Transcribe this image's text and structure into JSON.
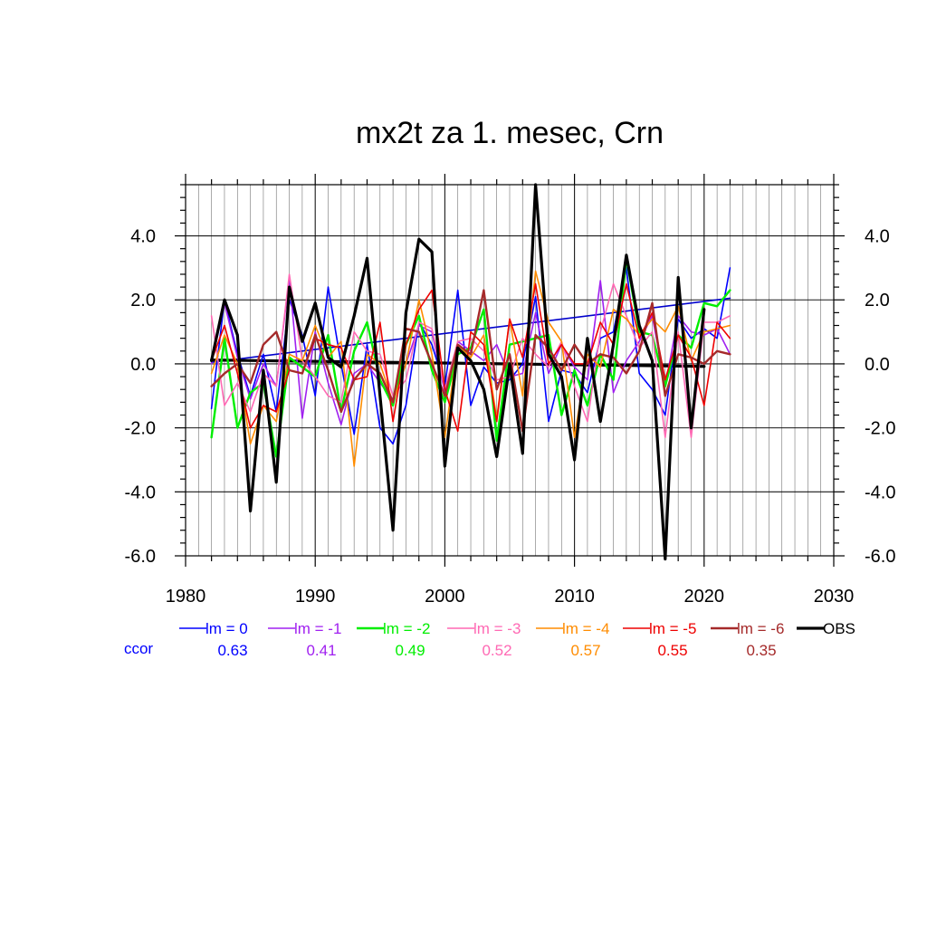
{
  "chart_data": {
    "type": "line",
    "title": "mx2t za 1. mesec, Crn",
    "xlabel": "",
    "ylabel": "",
    "xlim": [
      1980,
      2030
    ],
    "ylim": [
      -6.0,
      5.6
    ],
    "x_ticks": [
      1980,
      1990,
      2000,
      2010,
      2020,
      2030
    ],
    "y_ticks": [
      -6.0,
      -4.0,
      -2.0,
      0.0,
      2.0,
      4.0
    ],
    "y_tick_labels": [
      "-6.0",
      "-4.0",
      "-2.0",
      "0.0",
      "2.0",
      "4.0"
    ],
    "grid": true,
    "legend_placement": "bottom",
    "x": [
      1982,
      1983,
      1984,
      1985,
      1986,
      1987,
      1988,
      1989,
      1990,
      1991,
      1992,
      1993,
      1994,
      1995,
      1996,
      1997,
      1998,
      1999,
      2000,
      2001,
      2002,
      2003,
      2004,
      2005,
      2006,
      2007,
      2008,
      2009,
      2010,
      2011,
      2012,
      2013,
      2014,
      2015,
      2016,
      2017,
      2018,
      2019,
      2020,
      2021,
      2022
    ],
    "series": [
      {
        "name": "lm = 0",
        "color": "#0000ff",
        "ccor": "0.63",
        "width": 1.6,
        "values": [
          -1.4,
          2.0,
          0.3,
          -1.0,
          0.3,
          -1.5,
          2.0,
          0.9,
          -1.0,
          2.4,
          0.0,
          -2.2,
          0.6,
          -2.0,
          -2.5,
          -1.3,
          1.3,
          0.6,
          -0.7,
          2.3,
          -1.3,
          -0.1,
          -0.6,
          -0.5,
          0.0,
          2.1,
          -1.8,
          -0.2,
          -0.3,
          -0.9,
          0.8,
          1.0,
          3.0,
          -0.3,
          -0.8,
          -1.6,
          1.4,
          0.8,
          1.1,
          0.8,
          3.0
        ]
      },
      {
        "name": "lm = -1",
        "color": "#a020f0",
        "ccor": "0.41",
        "width": 1.6,
        "values": [
          0.0,
          1.9,
          0.2,
          -1.1,
          0.0,
          -0.7,
          2.7,
          -1.7,
          1.0,
          -0.6,
          -1.9,
          -0.3,
          0.0,
          -0.6,
          -1.1,
          0.0,
          1.2,
          1.0,
          -0.9,
          0.7,
          0.4,
          0.1,
          0.6,
          -0.4,
          -0.3,
          1.6,
          -0.3,
          0.6,
          -0.1,
          -0.5,
          2.6,
          -0.9,
          0.1,
          0.7,
          1.5,
          -0.7,
          1.5,
          1.0,
          0.9,
          1.1,
          0.3
        ]
      },
      {
        "name": "lm = -2",
        "color": "#00ee00",
        "ccor": "0.49",
        "width": 2.4,
        "values": [
          -2.3,
          0.8,
          -2.0,
          -0.9,
          -0.6,
          -2.9,
          0.2,
          -0.1,
          -0.4,
          0.9,
          -1.5,
          0.4,
          1.3,
          -0.5,
          -1.3,
          0.6,
          1.5,
          -0.2,
          -1.2,
          0.3,
          0.5,
          1.7,
          -2.4,
          0.6,
          0.7,
          0.8,
          0.9,
          -1.6,
          -0.2,
          -1.3,
          0.3,
          -0.5,
          3.3,
          1.0,
          0.9,
          -0.7,
          0.9,
          0.5,
          1.9,
          1.8,
          2.3
        ]
      },
      {
        "name": "lm = -3",
        "color": "#ff69b4",
        "ccor": "0.52",
        "width": 1.6,
        "values": [
          1.5,
          -1.3,
          -0.6,
          -1.5,
          -0.3,
          -0.7,
          2.8,
          0.1,
          -0.4,
          -1.0,
          -1.2,
          1.0,
          0.4,
          0.3,
          -1.0,
          -0.5,
          1.3,
          1.1,
          -0.8,
          0.7,
          0.8,
          0.4,
          -0.5,
          -0.4,
          0.8,
          0.3,
          -0.1,
          0.7,
          -0.7,
          -1.8,
          1.0,
          2.5,
          1.5,
          0.5,
          1.0,
          -2.3,
          1.0,
          -2.3,
          1.3,
          1.3,
          1.5
        ]
      },
      {
        "name": "lm = -4",
        "color": "#ff8c00",
        "ccor": "0.57",
        "width": 1.6,
        "values": [
          -0.3,
          0.9,
          0.0,
          -2.5,
          -1.3,
          -1.8,
          0.3,
          0.1,
          1.2,
          0.2,
          0.7,
          -3.2,
          0.3,
          0.0,
          -1.2,
          0.0,
          2.0,
          0.3,
          -2.3,
          0.6,
          0.2,
          0.9,
          -1.7,
          1.4,
          -1.0,
          2.9,
          1.3,
          0.7,
          -2.3,
          0.3,
          -0.1,
          1.7,
          1.4,
          0.9,
          1.4,
          1.0,
          1.8,
          0.1,
          1.0,
          1.1,
          1.2
        ]
      },
      {
        "name": "lm = -5",
        "color": "#ee0000",
        "ccor": "0.55",
        "width": 1.6,
        "values": [
          0.1,
          1.2,
          -0.3,
          -2.0,
          -1.3,
          -1.5,
          -0.2,
          -0.3,
          0.8,
          0.6,
          0.5,
          -0.5,
          -0.4,
          1.3,
          -1.8,
          0.6,
          1.7,
          2.3,
          -0.8,
          -2.1,
          1.0,
          0.6,
          -1.8,
          1.4,
          0.2,
          2.5,
          0.0,
          0.6,
          0.0,
          0.0,
          1.3,
          0.6,
          2.5,
          0.8,
          1.6,
          -0.5,
          0.9,
          0.2,
          -1.3,
          1.3,
          0.8
        ]
      },
      {
        "name": "lm = -6",
        "color": "#a52a2a",
        "ccor": "0.35",
        "width": 2.4,
        "values": [
          -0.7,
          -0.3,
          0.0,
          -0.6,
          0.6,
          1.0,
          -0.2,
          -0.3,
          0.9,
          -0.2,
          -1.5,
          -0.5,
          0.0,
          -0.3,
          -1.2,
          1.1,
          1.0,
          0.0,
          -1.0,
          0.6,
          0.3,
          2.3,
          -0.8,
          0.3,
          -2.1,
          0.9,
          0.5,
          -0.2,
          0.6,
          0.0,
          0.3,
          0.2,
          -0.3,
          0.4,
          1.9,
          -1.0,
          0.3,
          0.2,
          0.0,
          0.4,
          0.3
        ]
      },
      {
        "name": "OBS",
        "color": "#000000",
        "ccor": "",
        "width": 3.2,
        "values": [
          0.1,
          2.0,
          0.9,
          -4.6,
          -0.2,
          -3.7,
          2.4,
          0.7,
          1.9,
          0.2,
          -0.1,
          1.5,
          3.3,
          -1.0,
          -5.2,
          1.6,
          3.9,
          3.5,
          -3.2,
          0.5,
          0.1,
          -0.8,
          -2.9,
          0.0,
          -2.8,
          5.6,
          0.3,
          -0.4,
          -3.0,
          0.8,
          -1.8,
          0.6,
          3.4,
          1.2,
          0.1,
          -6.1,
          2.7,
          -2.0,
          1.7,
          null,
          null
        ]
      }
    ],
    "trend_lines": [
      {
        "name": "lm = 0 trend",
        "color": "#0000cc",
        "width": 1.6,
        "x": [
          1982,
          2022
        ],
        "y": [
          0.05,
          2.05
        ]
      },
      {
        "name": "OBS trend",
        "color": "#000000",
        "width": 3.2,
        "x": [
          1982,
          2020
        ],
        "y": [
          0.12,
          -0.08
        ]
      }
    ],
    "ccor_label": "ccor",
    "ccor_label_color": "#0000ff"
  }
}
